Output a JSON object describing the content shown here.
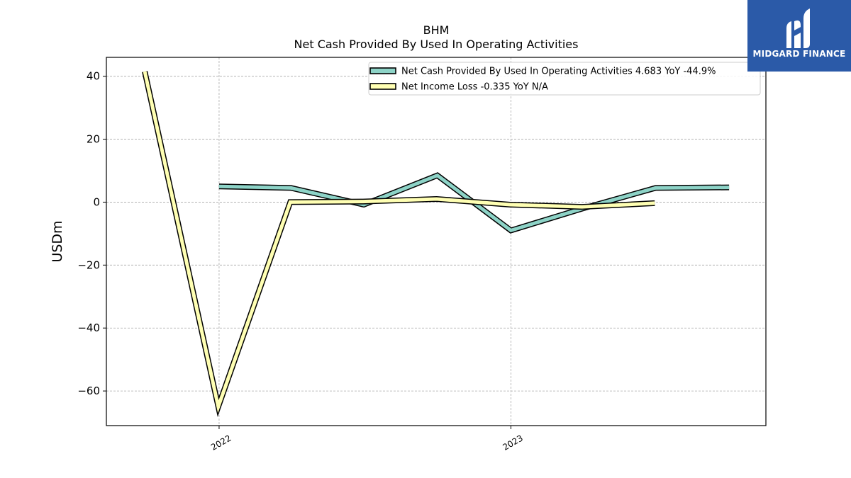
{
  "brand": {
    "name": "MIDGARD FINANCE",
    "bg_color": "#2b5aa8"
  },
  "chart_data": {
    "type": "line",
    "title": "BHM",
    "subtitle": "Net Cash Provided By Used In Operating Activities",
    "xlabel": "",
    "ylabel": "USDm",
    "ylim": [
      -71,
      46
    ],
    "xlim": [
      "2021-08-13",
      "2023-11-16"
    ],
    "x_ticks": [
      {
        "label": "2022",
        "date": "2022-01-01"
      },
      {
        "label": "2023",
        "date": "2023-01-01"
      }
    ],
    "y_ticks": [
      40,
      20,
      0,
      -20,
      -40,
      -60
    ],
    "y_tick_labels": [
      "40",
      "20",
      "0",
      "−20",
      "−40",
      "−60"
    ],
    "grid": true,
    "legend_position": "top-right",
    "series": [
      {
        "name": "Net Cash Provided By Used In Operating Activities",
        "legend_label": "Net Cash Provided By Used In Operating Activities  4.683 YoY -44.9%",
        "color": "#8dd3c7",
        "points": [
          {
            "x": "2022-01-01",
            "y": 5.0
          },
          {
            "x": "2022-04-01",
            "y": 4.5
          },
          {
            "x": "2022-07-01",
            "y": -0.8
          },
          {
            "x": "2022-10-01",
            "y": 8.5
          },
          {
            "x": "2023-01-01",
            "y": -9.0
          },
          {
            "x": "2023-04-01",
            "y": -2.0
          },
          {
            "x": "2023-07-01",
            "y": 4.5
          },
          {
            "x": "2023-10-01",
            "y": 4.7
          }
        ]
      },
      {
        "name": "Net Income Loss",
        "legend_label": "Net Income Loss  -0.335 YoY N/A",
        "color": "#ffffb3",
        "points": [
          {
            "x": "2021-09-30",
            "y": 41.5
          },
          {
            "x": "2021-12-31",
            "y": -65.0
          },
          {
            "x": "2022-03-31",
            "y": 0.0
          },
          {
            "x": "2022-06-30",
            "y": 0.2
          },
          {
            "x": "2022-09-30",
            "y": 1.0
          },
          {
            "x": "2022-12-31",
            "y": -0.8
          },
          {
            "x": "2023-03-31",
            "y": -1.5
          },
          {
            "x": "2023-06-30",
            "y": -0.335
          }
        ]
      }
    ]
  }
}
